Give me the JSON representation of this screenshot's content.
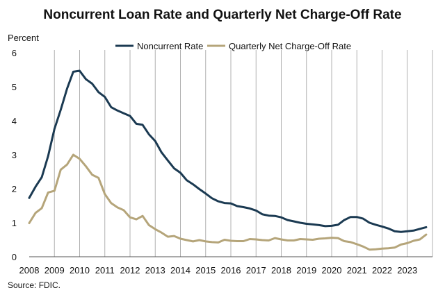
{
  "chart_data": {
    "type": "line",
    "title": "Noncurrent Loan Rate and Quarterly Net Charge-Off Rate",
    "ylabel": "Percent",
    "ylim": [
      0,
      6
    ],
    "yticks": [
      "0",
      "1",
      "2",
      "3",
      "4",
      "5",
      "6"
    ],
    "xlim": [
      2008,
      2024
    ],
    "xticks": [
      "2008",
      "2009",
      "2010",
      "2011",
      "2012",
      "2013",
      "2014",
      "2015",
      "2016",
      "2017",
      "2018",
      "2019",
      "2020",
      "2021",
      "2022",
      "2023"
    ],
    "grid": "vertical at each year",
    "legend": "top-center",
    "source": "Source: FDIC.",
    "colors": {
      "noncurrent": "#1b3a52",
      "chargeoff": "#b5a57a",
      "grid": "#b0b0b0",
      "axis": "#555555"
    },
    "x": [
      2008.0,
      2008.25,
      2008.5,
      2008.75,
      2009.0,
      2009.25,
      2009.5,
      2009.75,
      2010.0,
      2010.25,
      2010.5,
      2010.75,
      2011.0,
      2011.25,
      2011.5,
      2011.75,
      2012.0,
      2012.25,
      2012.5,
      2012.75,
      2013.0,
      2013.25,
      2013.5,
      2013.75,
      2014.0,
      2014.25,
      2014.5,
      2014.75,
      2015.0,
      2015.25,
      2015.5,
      2015.75,
      2016.0,
      2016.25,
      2016.5,
      2016.75,
      2017.0,
      2017.25,
      2017.5,
      2017.75,
      2018.0,
      2018.25,
      2018.5,
      2018.75,
      2019.0,
      2019.25,
      2019.5,
      2019.75,
      2020.0,
      2020.25,
      2020.5,
      2020.75,
      2021.0,
      2021.25,
      2021.5,
      2021.75,
      2022.0,
      2022.25,
      2022.5,
      2022.75,
      2023.0,
      2023.25,
      2023.5,
      2023.75
    ],
    "series": [
      {
        "name": "Noncurrent Rate",
        "values": [
          1.73,
          2.06,
          2.34,
          2.96,
          3.76,
          4.32,
          4.94,
          5.44,
          5.47,
          5.22,
          5.09,
          4.84,
          4.7,
          4.4,
          4.3,
          4.22,
          4.14,
          3.91,
          3.88,
          3.6,
          3.4,
          3.07,
          2.83,
          2.6,
          2.47,
          2.25,
          2.13,
          1.99,
          1.86,
          1.72,
          1.63,
          1.58,
          1.57,
          1.49,
          1.46,
          1.42,
          1.36,
          1.25,
          1.21,
          1.2,
          1.16,
          1.08,
          1.04,
          1.0,
          0.97,
          0.95,
          0.93,
          0.9,
          0.91,
          0.94,
          1.08,
          1.17,
          1.17,
          1.12,
          1.0,
          0.94,
          0.89,
          0.83,
          0.75,
          0.73,
          0.75,
          0.77,
          0.82,
          0.87
        ]
      },
      {
        "name": "Quarterly Net Charge-Off Rate",
        "values": [
          0.99,
          1.29,
          1.43,
          1.89,
          1.94,
          2.56,
          2.71,
          3.0,
          2.88,
          2.66,
          2.41,
          2.32,
          1.84,
          1.58,
          1.45,
          1.37,
          1.16,
          1.1,
          1.2,
          0.93,
          0.81,
          0.71,
          0.59,
          0.61,
          0.53,
          0.49,
          0.45,
          0.49,
          0.45,
          0.43,
          0.42,
          0.5,
          0.47,
          0.46,
          0.46,
          0.52,
          0.51,
          0.49,
          0.48,
          0.55,
          0.51,
          0.48,
          0.48,
          0.52,
          0.51,
          0.5,
          0.53,
          0.54,
          0.56,
          0.55,
          0.46,
          0.43,
          0.37,
          0.3,
          0.21,
          0.22,
          0.24,
          0.25,
          0.27,
          0.36,
          0.4,
          0.47,
          0.51,
          0.65
        ]
      }
    ]
  }
}
